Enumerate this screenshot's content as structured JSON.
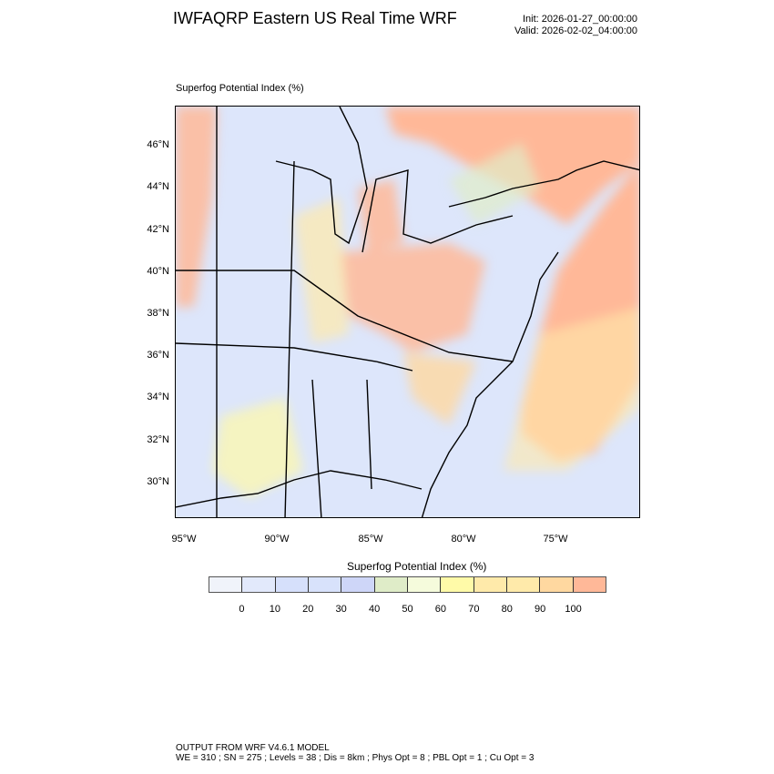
{
  "header": {
    "title": "IWFAQRP Eastern US Real Time WRF",
    "init": "Init: 2026-01-27_00:00:00",
    "valid": "Valid: 2026-02-02_04:00:00"
  },
  "plot": {
    "subtitle": "Superfog Potential Index   (%)",
    "lat_labels": [
      "46°N",
      "44°N",
      "42°N",
      "40°N",
      "38°N",
      "36°N",
      "34°N",
      "32°N",
      "30°N"
    ],
    "lon_labels": [
      "95°W",
      "90°W",
      "85°W",
      "80°W",
      "75°W"
    ]
  },
  "colorbar": {
    "title": "Superfog Potential Index  (%)",
    "labels": [
      "0",
      "10",
      "20",
      "30",
      "40",
      "50",
      "60",
      "70",
      "80",
      "90",
      "100"
    ],
    "colors": [
      "#f0f3fa",
      "#e2e9fb",
      "#d6e0fb",
      "#d8e2fb",
      "#ced6f8",
      "#dfecc8",
      "#f5fbdc",
      "#fffaa8",
      "#ffeaaa",
      "#ffeaaa",
      "#ffd8a0",
      "#ffb898"
    ]
  },
  "footer": {
    "line1": "OUTPUT FROM WRF V4.6.1 MODEL",
    "line2": "WE = 310 ; SN = 275 ; Levels = 38 ; Dis = 8km ; Phys Opt = 8 ; PBL Opt = 1 ; Cu Opt = 3"
  }
}
